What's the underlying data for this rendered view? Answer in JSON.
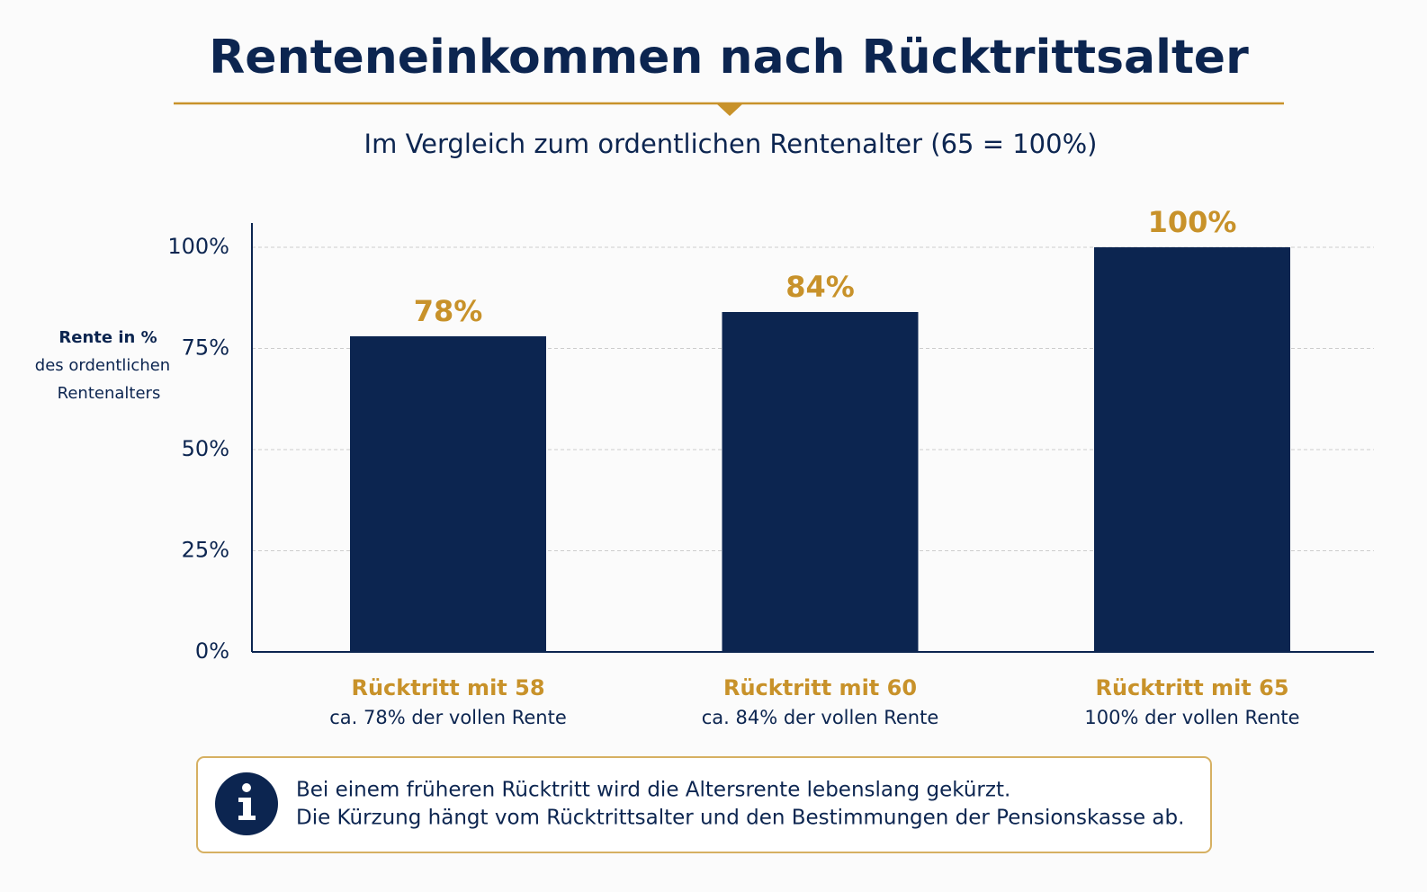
{
  "chart_data": {
    "type": "bar",
    "title": "Renteneinkommen nach Rücktrittsalter",
    "subtitle": "Im Vergleich zum ordentlichen Rentenalter (65 = 100%)",
    "ylabel": [
      "Rente in %",
      "des ordentlichen",
      "Rentenalters"
    ],
    "categories": [
      "Rücktritt mit 58",
      "Rücktritt mit 60",
      "Rücktritt mit 65"
    ],
    "category_notes": [
      "ca. 78% der vollen Rente",
      "ca. 84% der vollen Rente",
      "100% der vollen Rente"
    ],
    "values": [
      78,
      84,
      100
    ],
    "value_labels": [
      "78%",
      "84%",
      "100%"
    ],
    "color": "#0c2550",
    "label_color": "#c8922a",
    "ylim": [
      0,
      106
    ],
    "yticks": [
      {
        "value": 0,
        "label": "0%"
      },
      {
        "value": 25,
        "label": "25%"
      },
      {
        "value": 50,
        "label": "50%"
      },
      {
        "value": 75,
        "label": "75%"
      },
      {
        "value": 100,
        "label": "100%"
      }
    ],
    "grid": true,
    "note": [
      "Bei einem früheren Rücktritt wird die Altersrente lebenslang gekürzt.",
      "Die Kürzung hängt vom Rücktrittsalter und den Bestimmungen der Pensionskasse ab."
    ]
  }
}
